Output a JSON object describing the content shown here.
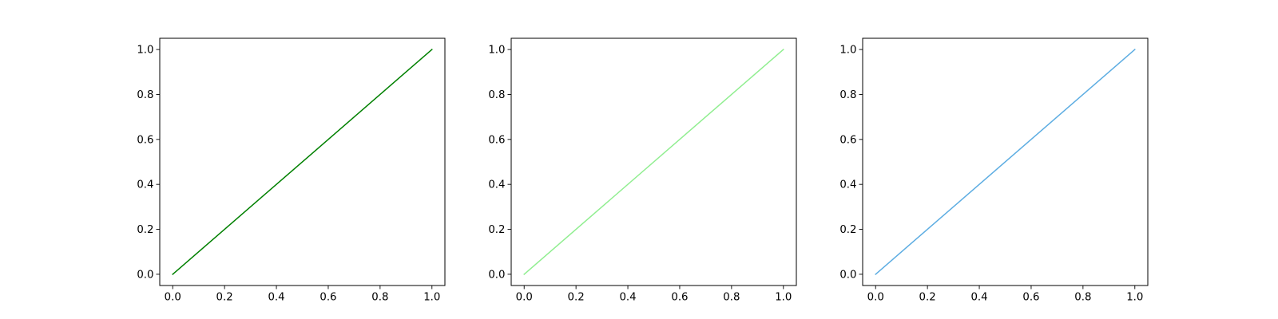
{
  "chart_data": [
    {
      "type": "line",
      "title": "",
      "xlabel": "",
      "ylabel": "",
      "xlim": [
        -0.05,
        1.05
      ],
      "ylim": [
        -0.05,
        1.05
      ],
      "grid": false,
      "x_ticks": [
        "0.0",
        "0.2",
        "0.4",
        "0.6",
        "0.8",
        "1.0"
      ],
      "y_ticks": [
        "0.0",
        "0.2",
        "0.4",
        "0.6",
        "0.8",
        "1.0"
      ],
      "series": [
        {
          "x": [
            0,
            1
          ],
          "y": [
            0,
            1
          ],
          "color": "#008000"
        }
      ]
    },
    {
      "type": "line",
      "title": "",
      "xlabel": "",
      "ylabel": "",
      "xlim": [
        -0.05,
        1.05
      ],
      "ylim": [
        -0.05,
        1.05
      ],
      "grid": false,
      "x_ticks": [
        "0.0",
        "0.2",
        "0.4",
        "0.6",
        "0.8",
        "1.0"
      ],
      "y_ticks": [
        "0.0",
        "0.2",
        "0.4",
        "0.6",
        "0.8",
        "1.0"
      ],
      "series": [
        {
          "x": [
            0,
            1
          ],
          "y": [
            0,
            1
          ],
          "color": "#90ee90"
        }
      ]
    },
    {
      "type": "line",
      "title": "",
      "xlabel": "",
      "ylabel": "",
      "xlim": [
        -0.05,
        1.05
      ],
      "ylim": [
        -0.05,
        1.05
      ],
      "grid": false,
      "x_ticks": [
        "0.0",
        "0.2",
        "0.4",
        "0.6",
        "0.8",
        "1.0"
      ],
      "y_ticks": [
        "0.0",
        "0.2",
        "0.4",
        "0.6",
        "0.8",
        "1.0"
      ],
      "series": [
        {
          "x": [
            0,
            1
          ],
          "y": [
            0,
            1
          ],
          "color": "#5dade2"
        }
      ]
    }
  ]
}
